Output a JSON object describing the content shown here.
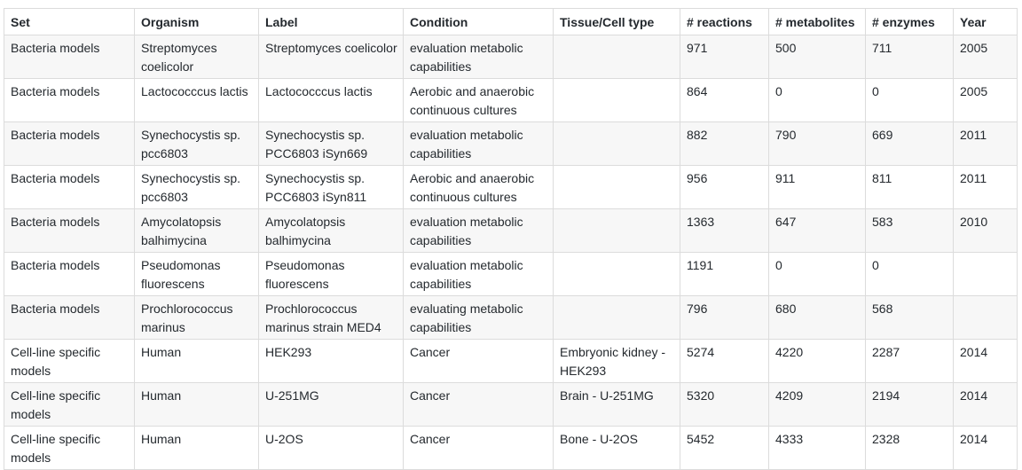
{
  "table": {
    "headers": [
      "Set",
      "Organism",
      "Label",
      "Condition",
      "Tissue/Cell type",
      "# reactions",
      "# metabolites",
      "# enzymes",
      "Year"
    ],
    "rows": [
      [
        "Bacteria models",
        "Streptomyces coelicolor",
        "Streptomyces coelicolor",
        "evaluation metabolic capabilities",
        "",
        "971",
        "500",
        "711",
        "2005"
      ],
      [
        "Bacteria models",
        "Lactococccus lactis",
        "Lactococccus lactis",
        "Aerobic and anaerobic continuous cultures",
        "",
        "864",
        "0",
        "0",
        "2005"
      ],
      [
        "Bacteria models",
        "Synechocystis sp. pcc6803",
        "Synechocystis sp. PCC6803 iSyn669",
        "evaluation metabolic capabilities",
        "",
        "882",
        "790",
        "669",
        "2011"
      ],
      [
        "Bacteria models",
        "Synechocystis sp. pcc6803",
        "Synechocystis sp. PCC6803 iSyn811",
        "Aerobic and anaerobic continuous cultures",
        "",
        "956",
        "911",
        "811",
        "2011"
      ],
      [
        "Bacteria models",
        "Amycolatopsis balhimycina",
        "Amycolatopsis balhimycina",
        "evaluation metabolic capabilities",
        "",
        "1363",
        "647",
        "583",
        "2010"
      ],
      [
        "Bacteria models",
        "Pseudomonas fluorescens",
        "Pseudomonas fluorescens",
        "evaluation metabolic capabilities",
        "",
        "1191",
        "0",
        "0",
        ""
      ],
      [
        "Bacteria models",
        "Prochlorococcus marinus",
        "Prochlorococcus marinus strain MED4",
        "evaluating metabolic capabilities",
        "",
        "796",
        "680",
        "568",
        ""
      ],
      [
        "Cell-line specific models",
        "Human",
        "HEK293",
        "Cancer",
        "Embryonic kidney - HEK293",
        "5274",
        "4220",
        "2287",
        "2014"
      ],
      [
        "Cell-line specific models",
        "Human",
        "U-251MG",
        "Cancer",
        "Brain - U-251MG",
        "5320",
        "4209",
        "2194",
        "2014"
      ],
      [
        "Cell-line specific models",
        "Human",
        "U-2OS",
        "Cancer",
        "Bone - U-2OS",
        "5452",
        "4333",
        "2328",
        "2014"
      ]
    ]
  }
}
